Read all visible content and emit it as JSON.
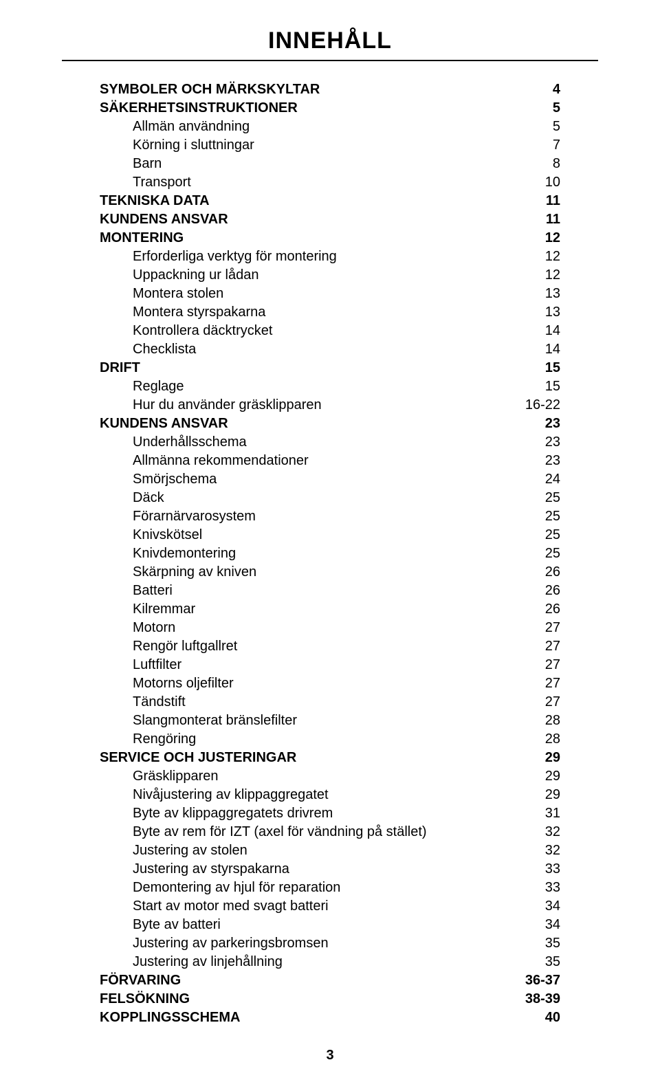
{
  "title": "INNEHÅLL",
  "page_number": "3",
  "entries": [
    {
      "label": "SYMBOLER OCH MÄRKSKYLTAR",
      "page": "4",
      "level": 0
    },
    {
      "label": "SÄKERHETSINSTRUKTIONER",
      "page": "5",
      "level": 0
    },
    {
      "label": "Allmän användning",
      "page": "5",
      "level": 1
    },
    {
      "label": "Körning i sluttningar",
      "page": "7",
      "level": 1
    },
    {
      "label": "Barn",
      "page": "8",
      "level": 1
    },
    {
      "label": "Transport",
      "page": "10",
      "level": 1
    },
    {
      "label": "TEKNISKA DATA",
      "page": "11",
      "level": 0
    },
    {
      "label": "KUNDENS ANSVAR",
      "page": "11",
      "level": 0
    },
    {
      "label": "MONTERING",
      "page": "12",
      "level": 0
    },
    {
      "label": "Erforderliga verktyg för montering",
      "page": "12",
      "level": 1
    },
    {
      "label": "Uppackning ur lådan",
      "page": "12",
      "level": 1
    },
    {
      "label": "Montera stolen",
      "page": "13",
      "level": 1
    },
    {
      "label": "Montera styrspakarna",
      "page": "13",
      "level": 1
    },
    {
      "label": "Kontrollera däcktrycket",
      "page": "14",
      "level": 1
    },
    {
      "label": "Checklista",
      "page": "14",
      "level": 1
    },
    {
      "label": "DRIFT",
      "page": "15",
      "level": 0
    },
    {
      "label": "Reglage",
      "page": "15",
      "level": 1
    },
    {
      "label": "Hur du använder gräsklipparen",
      "page": "16-22",
      "level": 1
    },
    {
      "label": "KUNDENS ANSVAR",
      "page": "23",
      "level": 0
    },
    {
      "label": "Underhållsschema",
      "page": "23",
      "level": 1
    },
    {
      "label": "Allmänna rekommendationer",
      "page": "23",
      "level": 1
    },
    {
      "label": "Smörjschema",
      "page": "24",
      "level": 1
    },
    {
      "label": "Däck",
      "page": "25",
      "level": 1
    },
    {
      "label": "Förarnärvarosystem",
      "page": "25",
      "level": 1
    },
    {
      "label": "Knivskötsel",
      "page": "25",
      "level": 1
    },
    {
      "label": "Knivdemontering",
      "page": "25",
      "level": 1
    },
    {
      "label": "Skärpning av kniven",
      "page": "26",
      "level": 1
    },
    {
      "label": "Batteri",
      "page": "26",
      "level": 1
    },
    {
      "label": "Kilremmar",
      "page": "26",
      "level": 1
    },
    {
      "label": "Motorn",
      "page": "27",
      "level": 1
    },
    {
      "label": "Rengör luftgallret",
      "page": "27",
      "level": 1
    },
    {
      "label": "Luftfilter",
      "page": "27",
      "level": 1
    },
    {
      "label": "Motorns oljefilter",
      "page": "27",
      "level": 1
    },
    {
      "label": "Tändstift",
      "page": "27",
      "level": 1
    },
    {
      "label": "Slangmonterat bränslefilter",
      "page": "28",
      "level": 1
    },
    {
      "label": "Rengöring",
      "page": "28",
      "level": 1
    },
    {
      "label": "SERVICE OCH JUSTERINGAR",
      "page": "29",
      "level": 0
    },
    {
      "label": "Gräsklipparen",
      "page": "29",
      "level": 1
    },
    {
      "label": "Nivåjustering av klippaggregatet",
      "page": "29",
      "level": 1
    },
    {
      "label": "Byte av klippaggregatets drivrem",
      "page": "31",
      "level": 1
    },
    {
      "label": "Byte av rem för IZT (axel för vändning på stället)",
      "page": "32",
      "level": 1
    },
    {
      "label": "Justering av stolen",
      "page": "32",
      "level": 1
    },
    {
      "label": "Justering av styrspakarna",
      "page": "33",
      "level": 1
    },
    {
      "label": "Demontering av hjul för reparation",
      "page": "33",
      "level": 1
    },
    {
      "label": "Start av motor med svagt batteri",
      "page": "34",
      "level": 1
    },
    {
      "label": "Byte av batteri",
      "page": "34",
      "level": 1
    },
    {
      "label": "Justering av parkeringsbromsen",
      "page": "35",
      "level": 1
    },
    {
      "label": "Justering av linjehållning",
      "page": "35",
      "level": 1
    },
    {
      "label": "FÖRVARING",
      "page": "36-37",
      "level": 0
    },
    {
      "label": "FELSÖKNING",
      "page": "38-39",
      "level": 0
    },
    {
      "label": "KOPPLINGSSCHEMA",
      "page": "40",
      "level": 0
    }
  ]
}
